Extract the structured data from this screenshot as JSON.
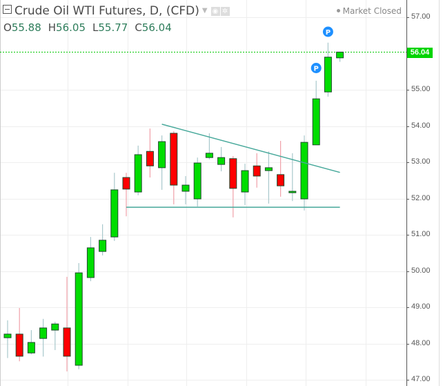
{
  "header": {
    "title": "Crude Oil WTI Futures, D, (CFD)",
    "collapse_icon": "minus-box-icon",
    "dropdown_icon": "caret-down-icon",
    "eye_icon": "eye-icon",
    "settings_icon": "gear-icon",
    "market_status": "Market Closed",
    "ohlc": {
      "o_label": "O",
      "o": "55.88",
      "h_label": "H",
      "h": "56.05",
      "l_label": "L",
      "l": "55.77",
      "c_label": "C",
      "c": "56.04"
    }
  },
  "last_price_label": "56.04",
  "colors": {
    "up": "#00dd00",
    "down": "#ff0000",
    "border": "#1f4a2e",
    "wick_up": "#a8c8cc",
    "wick_down": "#f0a0a8",
    "trendline": "#46a89a",
    "last_line": "#00c800",
    "marker": "#1e90ff",
    "grid": "#eeeeee"
  },
  "chart_data": {
    "type": "candlestick",
    "title": "Crude Oil WTI Futures, D, (CFD)",
    "xlabel": "",
    "ylabel": "",
    "ylim": [
      46.9,
      57.5
    ],
    "yticks": [
      "57.00",
      "56.00",
      "55.00",
      "54.00",
      "53.00",
      "52.00",
      "51.00",
      "50.00",
      "49.00",
      "48.00",
      "47.00"
    ],
    "grid": true,
    "last_price": 56.04,
    "candles": [
      {
        "o": 48.16,
        "h": 48.64,
        "l": 47.6,
        "c": 48.26
      },
      {
        "o": 48.26,
        "h": 48.98,
        "l": 47.51,
        "c": 47.65
      },
      {
        "o": 47.74,
        "h": 48.37,
        "l": 47.7,
        "c": 48.03
      },
      {
        "o": 48.14,
        "h": 48.68,
        "l": 47.64,
        "c": 48.43
      },
      {
        "o": 48.37,
        "h": 48.6,
        "l": 47.82,
        "c": 48.54
      },
      {
        "o": 48.43,
        "h": 49.84,
        "l": 47.23,
        "c": 47.65
      },
      {
        "o": 47.4,
        "h": 50.22,
        "l": 47.29,
        "c": 49.95
      },
      {
        "o": 49.82,
        "h": 50.94,
        "l": 49.72,
        "c": 50.64
      },
      {
        "o": 50.54,
        "h": 51.29,
        "l": 50.43,
        "c": 50.85
      },
      {
        "o": 50.94,
        "h": 52.71,
        "l": 50.83,
        "c": 52.24
      },
      {
        "o": 52.58,
        "h": 52.71,
        "l": 51.51,
        "c": 52.26
      },
      {
        "o": 52.18,
        "h": 53.46,
        "l": 52.09,
        "c": 53.21
      },
      {
        "o": 53.3,
        "h": 53.93,
        "l": 52.58,
        "c": 52.9
      },
      {
        "o": 52.85,
        "h": 53.74,
        "l": 52.24,
        "c": 53.57
      },
      {
        "o": 53.8,
        "h": 53.86,
        "l": 51.84,
        "c": 52.37
      },
      {
        "o": 52.2,
        "h": 52.62,
        "l": 51.84,
        "c": 52.37
      },
      {
        "o": 51.99,
        "h": 53.13,
        "l": 51.78,
        "c": 52.98
      },
      {
        "o": 53.13,
        "h": 53.8,
        "l": 53.08,
        "c": 53.25
      },
      {
        "o": 52.94,
        "h": 53.42,
        "l": 52.75,
        "c": 53.13
      },
      {
        "o": 53.1,
        "h": 53.17,
        "l": 51.48,
        "c": 52.28
      },
      {
        "o": 52.18,
        "h": 52.96,
        "l": 51.82,
        "c": 52.77
      },
      {
        "o": 52.9,
        "h": 53.25,
        "l": 52.3,
        "c": 52.62
      },
      {
        "o": 52.77,
        "h": 53.3,
        "l": 51.86,
        "c": 52.85
      },
      {
        "o": 52.66,
        "h": 53.59,
        "l": 52.05,
        "c": 52.35
      },
      {
        "o": 52.16,
        "h": 53.25,
        "l": 51.93,
        "c": 52.2
      },
      {
        "o": 51.99,
        "h": 53.74,
        "l": 51.67,
        "c": 53.55
      },
      {
        "o": 53.48,
        "h": 55.25,
        "l": 53.48,
        "c": 54.75
      },
      {
        "o": 54.94,
        "h": 56.3,
        "l": 54.81,
        "c": 55.9
      },
      {
        "o": 55.88,
        "h": 56.05,
        "l": 55.77,
        "c": 56.04
      }
    ],
    "annotations": [
      {
        "type": "trendline",
        "from": [
          13,
          54.05
        ],
        "to": [
          28,
          52.72
        ],
        "label": "upper descending trendline"
      },
      {
        "type": "trendline",
        "from": [
          10,
          51.76
        ],
        "to": [
          28,
          51.76
        ],
        "label": "horizontal support"
      },
      {
        "type": "marker",
        "text": "P",
        "bar": 26,
        "price": 55.6
      },
      {
        "type": "marker",
        "text": "P",
        "bar": 27,
        "price": 56.6
      }
    ]
  }
}
